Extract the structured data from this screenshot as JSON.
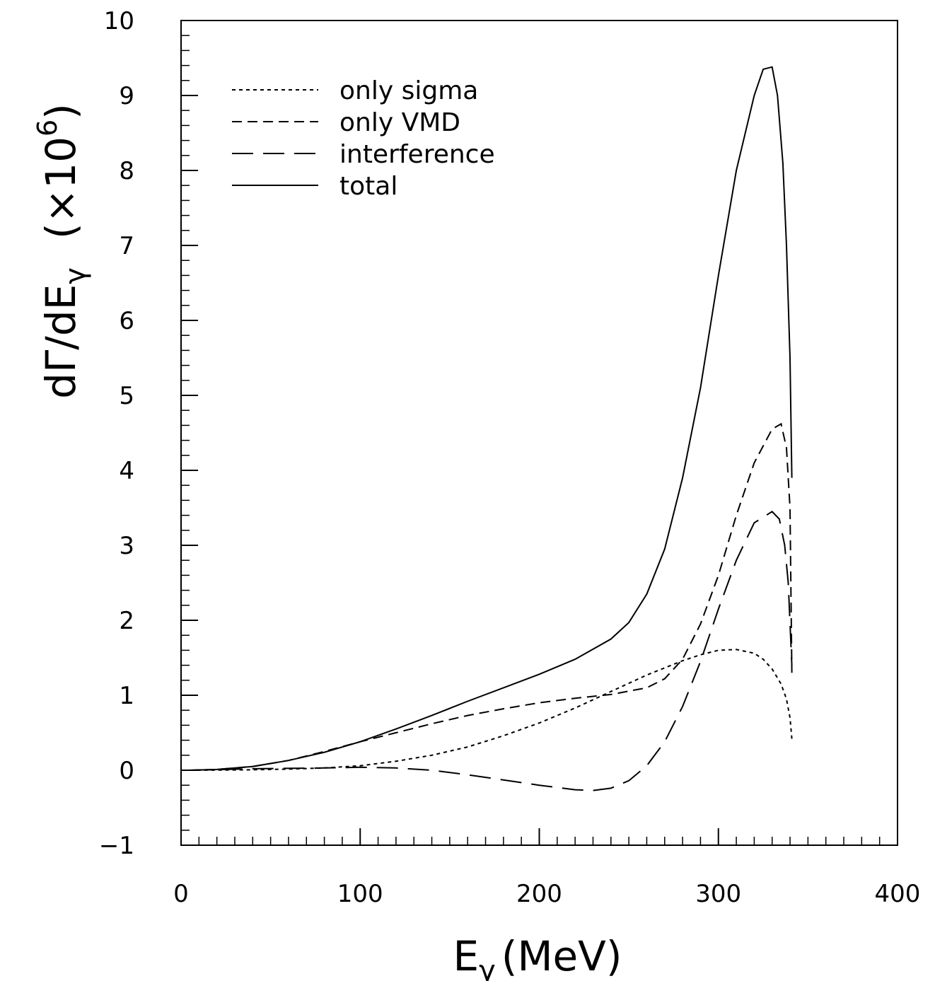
{
  "chart_data": {
    "type": "line",
    "title": "",
    "xlabel": {
      "main": "E",
      "sub": "γ",
      "rest": "(MeV)"
    },
    "ylabel": {
      "main": "dΓ/dE",
      "sub": "γ",
      "factor": "(×10",
      "exp": "6",
      "close": ")"
    },
    "xlim": [
      0,
      400
    ],
    "ylim": [
      -1,
      10
    ],
    "x_ticks": [
      0,
      100,
      200,
      300,
      400
    ],
    "y_ticks": [
      -1,
      0,
      1,
      2,
      3,
      4,
      5,
      6,
      7,
      8,
      9,
      10
    ],
    "x_tick_labels": [
      "0",
      "100",
      "200",
      "300",
      "400"
    ],
    "y_tick_labels": [
      "−1",
      "0",
      "1",
      "2",
      "3",
      "4",
      "5",
      "6",
      "7",
      "8",
      "9",
      "10"
    ],
    "grid": false,
    "legend_position": "top-left",
    "series": [
      {
        "name": "only sigma",
        "dash": "dotted",
        "x": [
          5,
          20,
          40,
          60,
          80,
          100,
          120,
          140,
          160,
          180,
          200,
          220,
          240,
          260,
          280,
          290,
          300,
          310,
          320,
          325,
          330,
          335,
          338,
          340,
          341
        ],
        "y": [
          0,
          0.002,
          0.006,
          0.015,
          0.03,
          0.06,
          0.12,
          0.2,
          0.31,
          0.46,
          0.63,
          0.83,
          1.05,
          1.27,
          1.46,
          1.54,
          1.6,
          1.61,
          1.56,
          1.48,
          1.35,
          1.15,
          0.95,
          0.7,
          0.42
        ]
      },
      {
        "name": "only VMD",
        "dash": "dashed",
        "x": [
          5,
          20,
          40,
          60,
          80,
          100,
          120,
          140,
          160,
          180,
          200,
          220,
          240,
          260,
          270,
          280,
          290,
          300,
          310,
          320,
          330,
          335,
          338,
          340,
          341
        ],
        "y": [
          0,
          0.01,
          0.05,
          0.13,
          0.25,
          0.38,
          0.5,
          0.62,
          0.73,
          0.82,
          0.9,
          0.96,
          1.01,
          1.1,
          1.22,
          1.48,
          1.95,
          2.6,
          3.4,
          4.1,
          4.55,
          4.62,
          4.3,
          3.5,
          1.3
        ]
      },
      {
        "name": "interference",
        "dash": "long-dash",
        "x": [
          5,
          40,
          80,
          100,
          120,
          140,
          160,
          180,
          200,
          220,
          230,
          240,
          250,
          260,
          270,
          280,
          290,
          300,
          310,
          320,
          330,
          334,
          337,
          339,
          341
        ],
        "y": [
          0,
          0.02,
          0.03,
          0.04,
          0.03,
          0.0,
          -0.06,
          -0.13,
          -0.2,
          -0.26,
          -0.27,
          -0.24,
          -0.14,
          0.06,
          0.38,
          0.85,
          1.45,
          2.15,
          2.8,
          3.3,
          3.45,
          3.35,
          3.0,
          2.5,
          1.4
        ]
      },
      {
        "name": "total",
        "dash": "solid",
        "x": [
          5,
          20,
          40,
          60,
          80,
          100,
          120,
          140,
          160,
          180,
          200,
          220,
          240,
          250,
          260,
          270,
          280,
          290,
          300,
          310,
          320,
          325,
          330,
          333,
          336,
          338,
          340,
          341
        ],
        "y": [
          0,
          0.01,
          0.05,
          0.13,
          0.24,
          0.38,
          0.55,
          0.73,
          0.92,
          1.1,
          1.28,
          1.48,
          1.75,
          1.97,
          2.35,
          2.95,
          3.9,
          5.1,
          6.6,
          8.0,
          9.0,
          9.35,
          9.38,
          9.0,
          8.1,
          7.0,
          5.5,
          3.9
        ]
      }
    ]
  }
}
